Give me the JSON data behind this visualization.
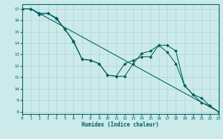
{
  "xlabel": "Humidex (Indice chaleur)",
  "background_color": "#cceaea",
  "grid_color": "#aad4d4",
  "line_color": "#006060",
  "xlim": [
    0,
    23
  ],
  "ylim": [
    7.8,
    17.4
  ],
  "yticks": [
    8,
    9,
    10,
    11,
    12,
    13,
    14,
    15,
    16,
    17
  ],
  "xticks": [
    0,
    1,
    2,
    3,
    4,
    5,
    6,
    7,
    8,
    9,
    10,
    11,
    12,
    13,
    14,
    15,
    16,
    17,
    18,
    19,
    20,
    21,
    22,
    23
  ],
  "series": [
    {
      "has_markers": false,
      "x": [
        0,
        1,
        23
      ],
      "y": [
        17,
        17,
        8.0
      ]
    },
    {
      "has_markers": true,
      "x": [
        0,
        1,
        2,
        3,
        4,
        5,
        6,
        7,
        8,
        9,
        10,
        11,
        12,
        13,
        14,
        15,
        16,
        17,
        18,
        19,
        20,
        21,
        22,
        23
      ],
      "y": [
        17,
        17,
        16.6,
        16.6,
        16.1,
        15.2,
        14.1,
        12.6,
        12.5,
        12.2,
        11.2,
        11.1,
        11.1,
        12.2,
        13.1,
        13.3,
        13.8,
        13.8,
        13.3,
        10.3,
        9.5,
        9.2,
        8.5,
        8.0
      ]
    },
    {
      "has_markers": true,
      "x": [
        0,
        1,
        2,
        3,
        4,
        5,
        6,
        7,
        8,
        9,
        10,
        11,
        12,
        13,
        14,
        15,
        16,
        17,
        18,
        19,
        20,
        21,
        22,
        23
      ],
      "y": [
        17,
        17,
        16.5,
        16.6,
        16.2,
        15.2,
        14.2,
        12.6,
        12.5,
        12.2,
        11.2,
        11.1,
        12.2,
        12.5,
        12.8,
        12.8,
        13.8,
        13.2,
        12.2,
        10.3,
        9.5,
        8.8,
        8.5,
        8.0
      ]
    }
  ]
}
